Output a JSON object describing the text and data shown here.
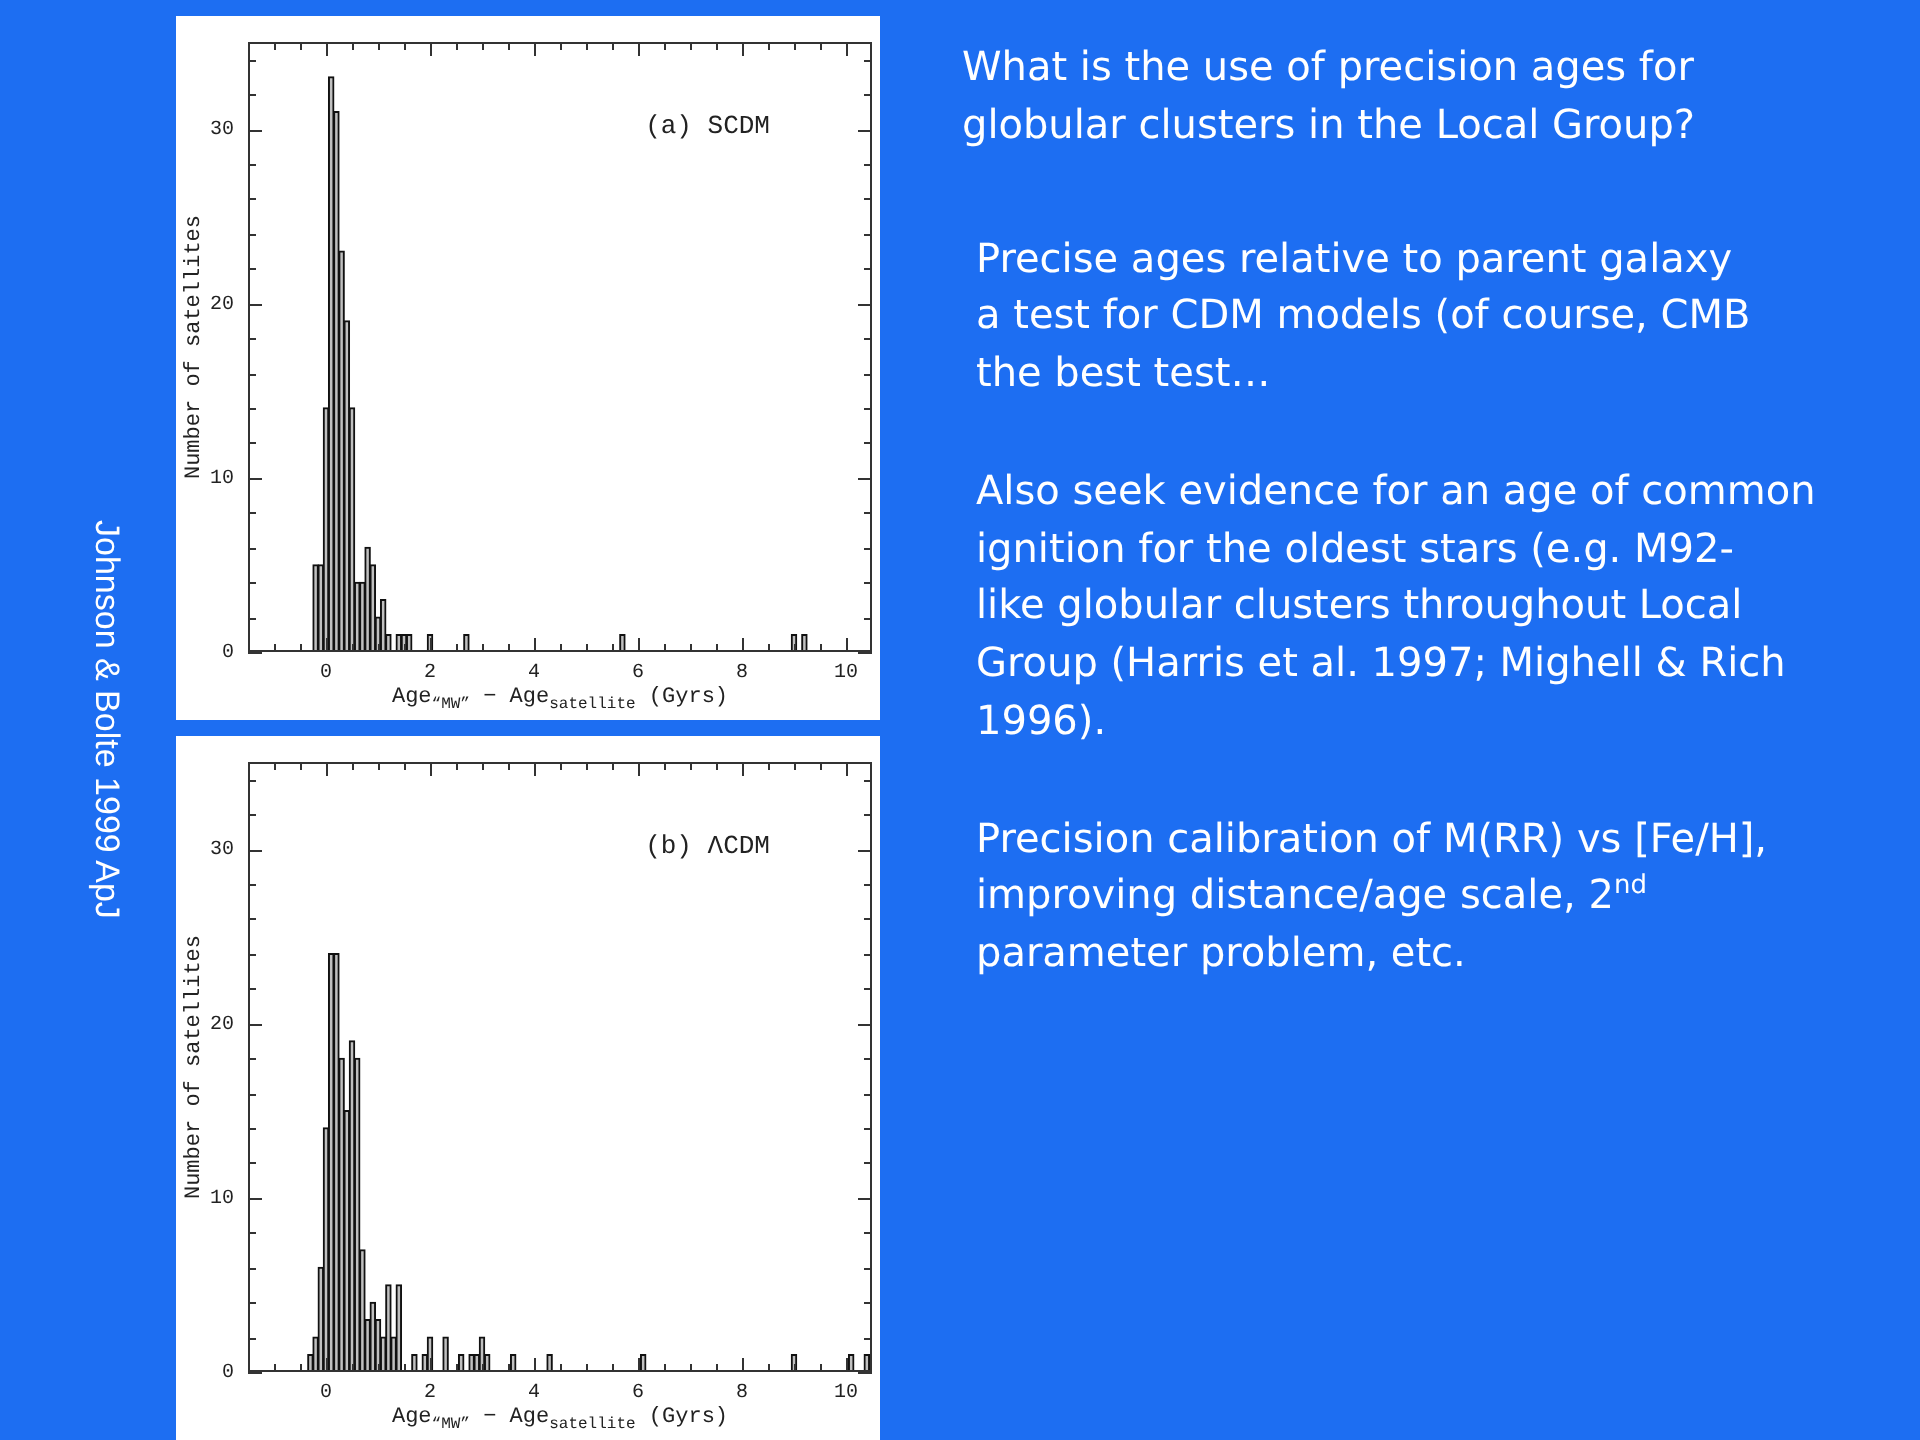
{
  "chart_data": [
    {
      "type": "histogram",
      "title": "(a) SCDM",
      "xlabel": "Age$_{“MW”}$ − Age$_{satellite}$ (Gyrs)",
      "ylabel": "Number of satellites",
      "bins": [
        -0.25,
        -0.15,
        -0.05,
        0.05,
        0.15,
        0.25,
        0.35,
        0.45,
        0.55,
        0.65,
        0.75,
        0.85,
        0.95,
        1.05,
        1.15,
        1.25,
        1.35,
        1.45,
        1.55,
        1.65,
        1.95,
        2.05,
        2.65,
        2.75,
        5.65,
        5.75,
        8.95,
        9.05,
        9.15,
        9.25
      ],
      "values": [
        5,
        5,
        14,
        33,
        31,
        23,
        19,
        14,
        4,
        4,
        6,
        5,
        2,
        3,
        1,
        0,
        1,
        1,
        1,
        0,
        1,
        0,
        1,
        0,
        1,
        0,
        1,
        0,
        1
      ],
      "color": "#c0c0c0",
      "xlim": [
        -1.5,
        10.5
      ],
      "ylim": [
        0,
        35
      ],
      "xticks": [
        {
          "value": -1,
          "label": null
        },
        {
          "value": -0.5,
          "label": null
        },
        0,
        {
          "value": 0.5,
          "label": null
        },
        {
          "value": 1,
          "label": null
        },
        {
          "value": 1.5,
          "label": null
        },
        2,
        {
          "value": 2.5,
          "label": null
        },
        {
          "value": 3,
          "label": null
        },
        {
          "value": 3.5,
          "label": null
        },
        4,
        {
          "value": 4.5,
          "label": null
        },
        {
          "value": 5,
          "label": null
        },
        {
          "value": 5.5,
          "label": null
        },
        6,
        {
          "value": 6.5,
          "label": null
        },
        {
          "value": 7,
          "label": null
        },
        {
          "value": 7.5,
          "label": null
        },
        8,
        {
          "value": 8.5,
          "label": null
        },
        {
          "value": 9,
          "label": null
        },
        {
          "value": 9.5,
          "label": null
        },
        10
      ],
      "yticks": [
        0,
        {
          "value": 2,
          "label": null
        },
        {
          "value": 4,
          "label": null
        },
        {
          "value": 6,
          "label": null
        },
        {
          "value": 8,
          "label": null
        },
        10,
        {
          "value": 12,
          "label": null
        },
        {
          "value": 14,
          "label": null
        },
        {
          "value": 16,
          "label": null
        },
        {
          "value": 18,
          "label": null
        },
        20,
        {
          "value": 22,
          "label": null
        },
        {
          "value": 24,
          "label": null
        },
        {
          "value": 26,
          "label": null
        },
        {
          "value": 28,
          "label": null
        },
        30,
        {
          "value": 32,
          "label": null
        },
        {
          "value": 34,
          "label": null
        }
      ],
      "annotations": [
        "Johnson & Bolte 1999 ApJ"
      ]
    },
    {
      "type": "histogram",
      "title": "(b) ΛCDM",
      "xlabel": "Age$_{“MW”}$ − Age$_{satellite}$ (Gyrs)",
      "ylabel": "Number of satellites",
      "bins": [
        -0.35,
        -0.25,
        -0.15,
        -0.05,
        0.05,
        0.15,
        0.25,
        0.35,
        0.45,
        0.55,
        0.65,
        0.75,
        0.85,
        0.95,
        1.05,
        1.15,
        1.25,
        1.35,
        1.45,
        1.65,
        1.75,
        1.85,
        1.95,
        2.05,
        2.25,
        2.35,
        2.55,
        2.65,
        2.75,
        2.85,
        2.95,
        3.05,
        3.15,
        3.55,
        3.65,
        4.25,
        4.35,
        6.05,
        6.15,
        8.95,
        9.05,
        10.05,
        10.15,
        10.35,
        10.45
      ],
      "values": [
        1,
        2,
        6,
        14,
        24,
        24,
        18,
        15,
        19,
        18,
        7,
        3,
        4,
        3,
        2,
        5,
        2,
        5,
        0,
        1,
        0,
        1,
        2,
        0,
        2,
        0,
        1,
        0,
        1,
        1,
        2,
        1,
        0,
        1,
        0,
        1,
        0,
        1,
        0,
        1,
        0,
        1,
        0,
        1
      ],
      "color": "#c0c0c0",
      "xlim": [
        -1.5,
        10.5
      ],
      "ylim": [
        0,
        35
      ],
      "xticks": [
        {
          "value": -1,
          "label": null
        },
        {
          "value": -0.5,
          "label": null
        },
        0,
        {
          "value": 0.5,
          "label": null
        },
        {
          "value": 1,
          "label": null
        },
        {
          "value": 1.5,
          "label": null
        },
        2,
        {
          "value": 2.5,
          "label": null
        },
        {
          "value": 3,
          "label": null
        },
        {
          "value": 3.5,
          "label": null
        },
        4,
        {
          "value": 4.5,
          "label": null
        },
        {
          "value": 5,
          "label": null
        },
        {
          "value": 5.5,
          "label": null
        },
        6,
        {
          "value": 6.5,
          "label": null
        },
        {
          "value": 7,
          "label": null
        },
        {
          "value": 7.5,
          "label": null
        },
        8,
        {
          "value": 8.5,
          "label": null
        },
        {
          "value": 9,
          "label": null
        },
        {
          "value": 9.5,
          "label": null
        },
        10
      ],
      "yticks": [
        0,
        {
          "value": 2,
          "label": null
        },
        {
          "value": 4,
          "label": null
        },
        {
          "value": 6,
          "label": null
        },
        {
          "value": 8,
          "label": null
        },
        10,
        {
          "value": 12,
          "label": null
        },
        {
          "value": 14,
          "label": null
        },
        {
          "value": 16,
          "label": null
        },
        {
          "value": 18,
          "label": null
        },
        20,
        {
          "value": 22,
          "label": null
        },
        {
          "value": 24,
          "label": null
        },
        {
          "value": 26,
          "label": null
        },
        {
          "value": 28,
          "label": null
        },
        30,
        {
          "value": 32,
          "label": null
        },
        {
          "value": 34,
          "label": null
        }
      ]
    },
    {
      "type": "other",
      "title": "What is the use of precision ages for\nglobular clusters in the Local Group?",
      "annotations": [
        "Precise ages relative to parent galaxy\na test for CDM models (of course, CMB\nthe best test…",
        "Also seek evidence for an age of common\nignition for the oldest stars (e.g. M92-\nlike globular clusters throughout Local\nGroup (Harris et al. 1997; Mighell & Rich\n1996).",
        "Precision calibration of M(RR) vs [Fe/H],\nimproving distance/age scale, 2$^{nd}$\nparameter problem, etc."
      ]
    }
  ]
}
